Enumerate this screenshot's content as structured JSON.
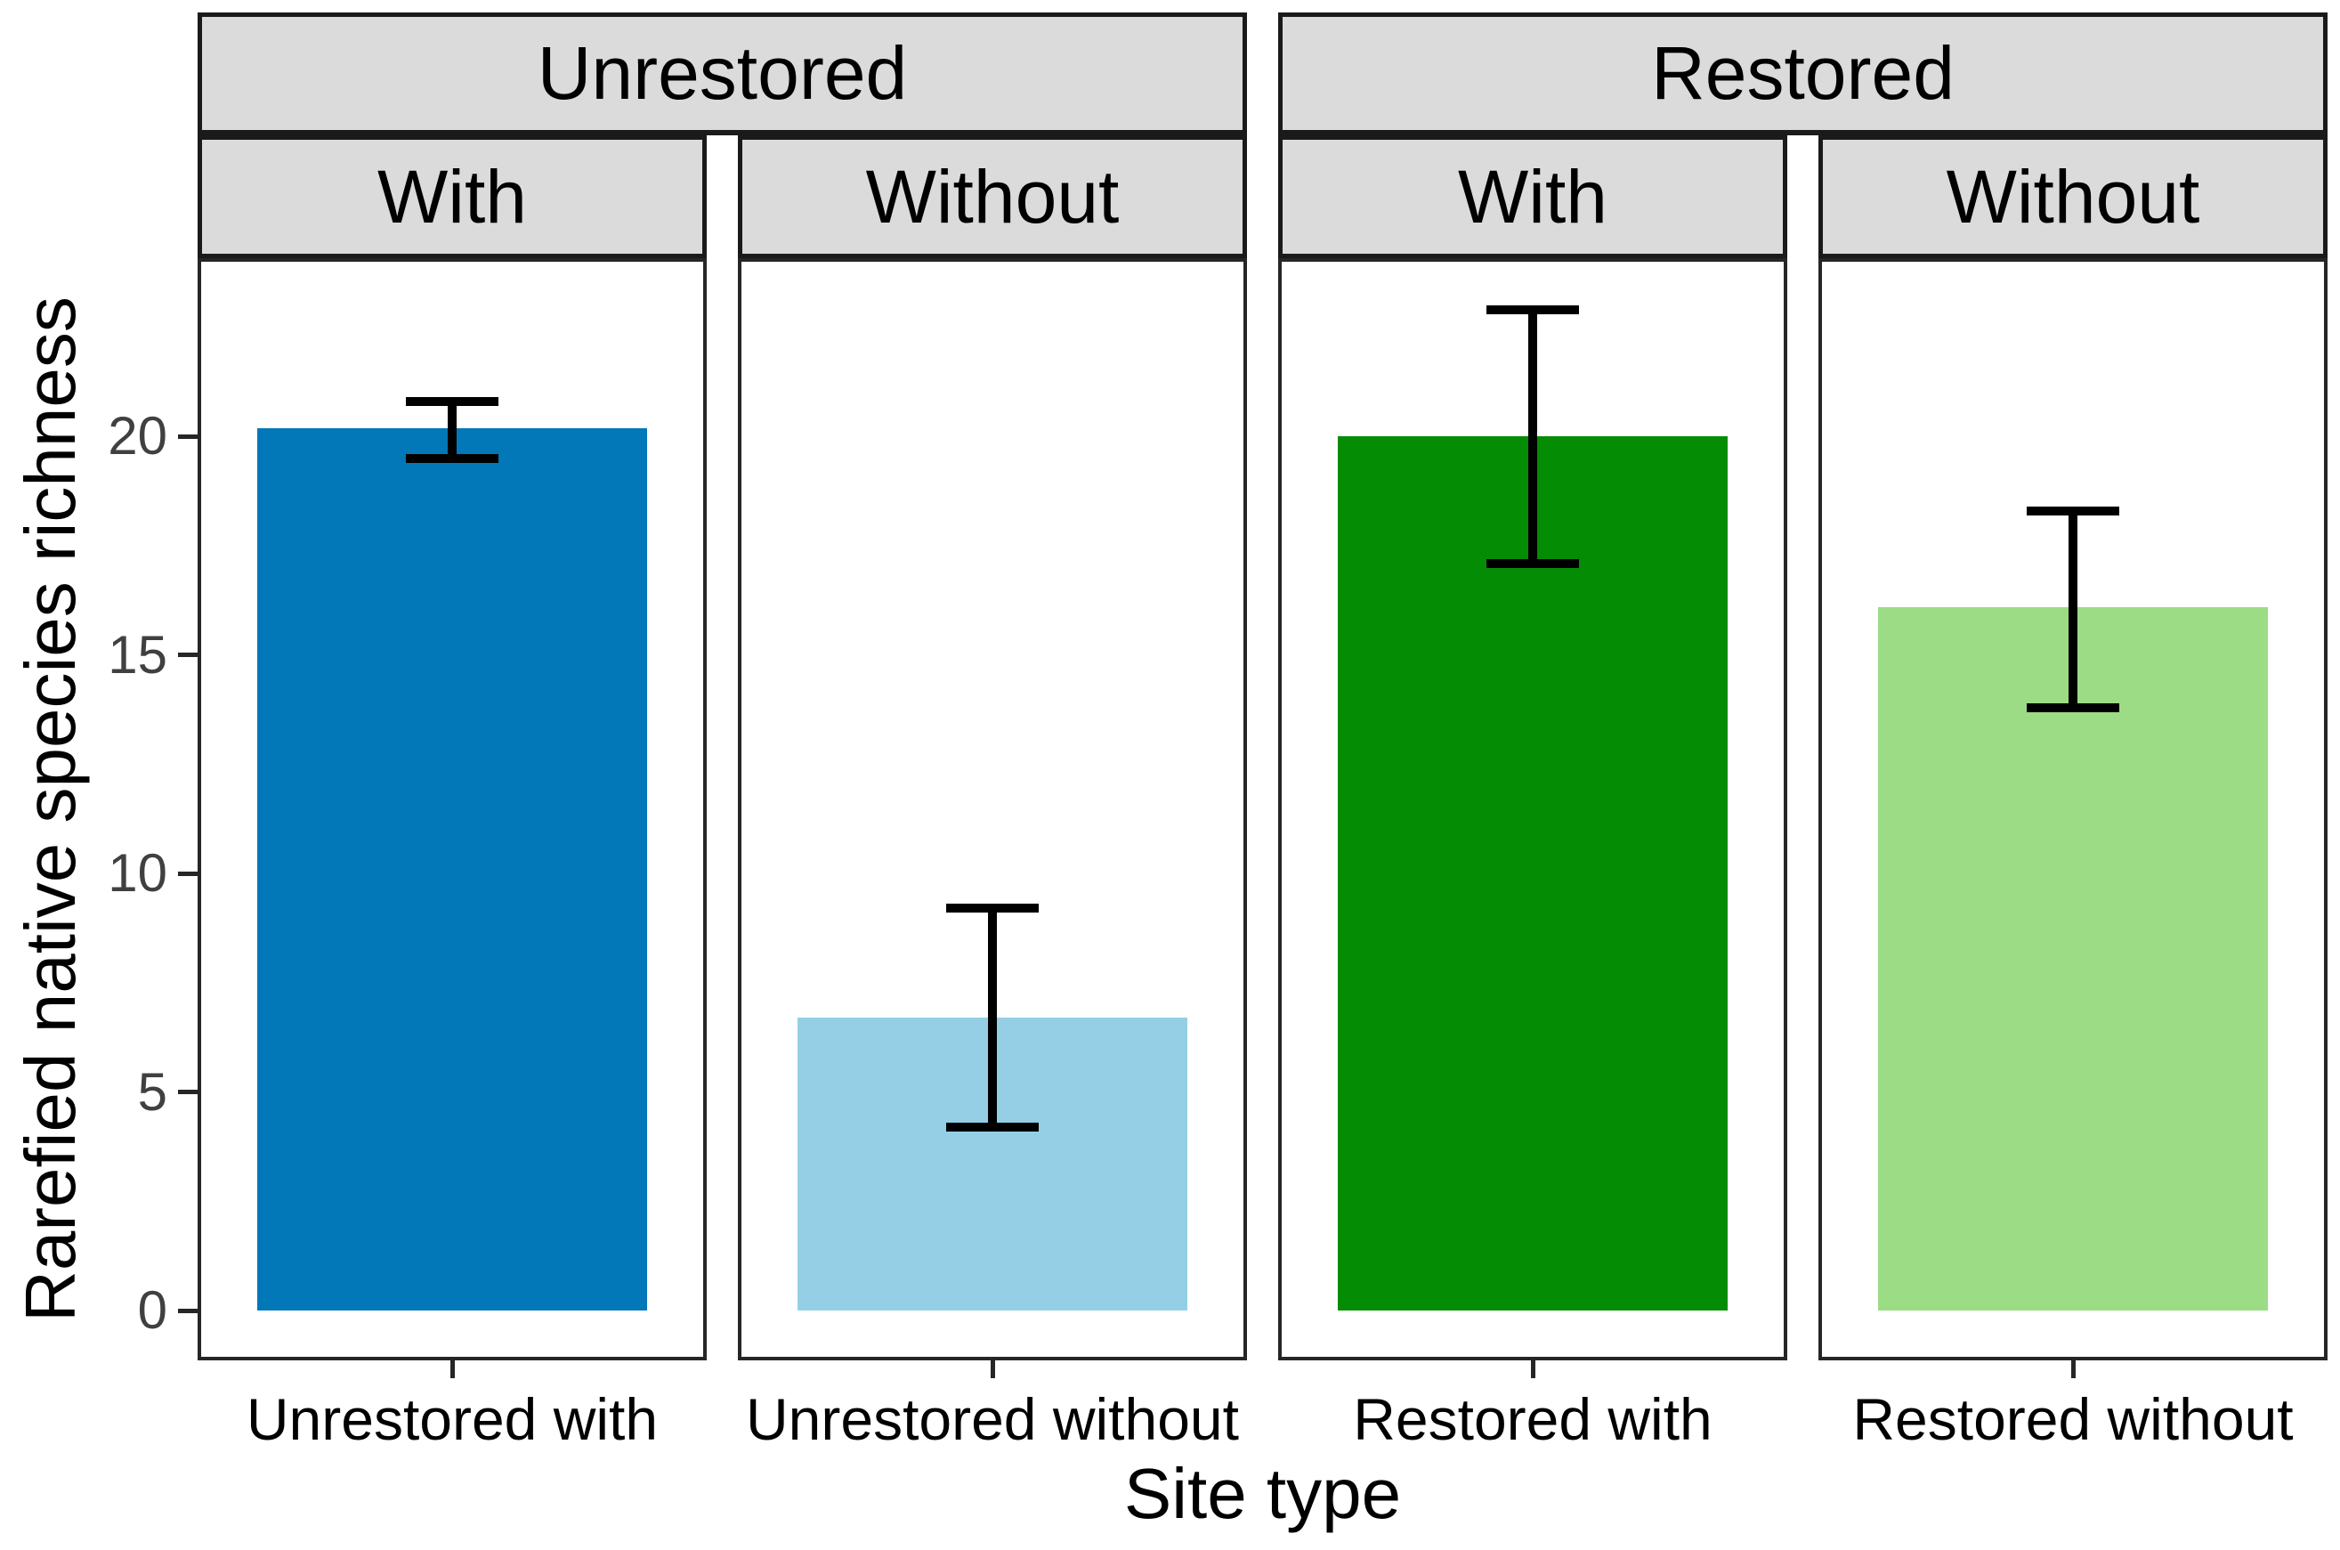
{
  "chart_data": {
    "type": "bar",
    "title": "",
    "xlabel": "Site type",
    "ylabel": "Rarefied native species richness",
    "ylim": [
      0,
      24
    ],
    "yticks": [
      0,
      5,
      10,
      15,
      20
    ],
    "grid": "off",
    "legend": "none",
    "facets": [
      {
        "label": "Unrestored",
        "panels": [
          0,
          1
        ]
      },
      {
        "label": "Restored",
        "panels": [
          2,
          3
        ]
      }
    ],
    "panels": [
      {
        "strip": "With",
        "category": "Unrestored with",
        "value": 20.2,
        "ci_low": 19.5,
        "ci_high": 20.8,
        "color": "#0378B8"
      },
      {
        "strip": "Without",
        "category": "Unrestored without",
        "value": 6.7,
        "ci_low": 4.2,
        "ci_high": 9.2,
        "color": "#95CFE6"
      },
      {
        "strip": "With",
        "category": "Restored with",
        "value": 20.0,
        "ci_low": 17.1,
        "ci_high": 22.9,
        "color": "#048C04"
      },
      {
        "strip": "Without",
        "category": "Restored without",
        "value": 16.1,
        "ci_low": 13.8,
        "ci_high": 18.3,
        "color": "#9BDC85"
      }
    ],
    "colors": {
      "strip_background": "#DBDBDB",
      "strip_border": "#1A1A1A",
      "panel_border": "#262626",
      "error_bar": "#000000",
      "axis_tick": "#262626",
      "y_tick_text": "#404040",
      "x_tick_text": "#000000"
    }
  }
}
